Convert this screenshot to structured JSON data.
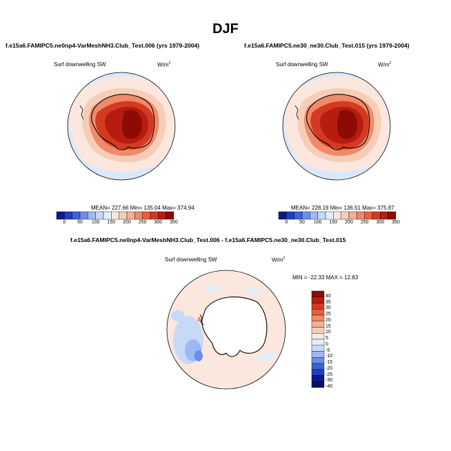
{
  "figure": {
    "title": "DJF"
  },
  "panel_left": {
    "case_title": "f.e15a6.FAMIPC5.ne0np4-VarMeshNH3.Club_Test.006 (yrs 1979-2004)",
    "variable": "Surf downwelling SW",
    "units_base": "W/m",
    "units_exp": "2",
    "stats": "MEAN= 227.66  Min= 135.04  Max= 374.94"
  },
  "panel_right": {
    "case_title": "f.e15a6.FAMIPC5.ne30_ne30.Club_Test.015 (yrs 1979-2004)",
    "variable": "Surf downwelling SW",
    "units_base": "W/m",
    "units_exp": "2",
    "stats": "MEAN= 228.19  Min= 136.51  Max= 375.87"
  },
  "panel_diff": {
    "case_title": "f.e15a6.FAMIPC5.ne0np4-VarMeshNH3.Club_Test.006 - f.e15a6.FAMIPC5.ne30_ne30.Club_Test.015",
    "variable": "Surf downwelling SW",
    "units_base": "W/m",
    "units_exp": "2",
    "stats": "MIN = -22.33 MAX =  12.83"
  },
  "colorbar_abs": {
    "labels": [
      "0",
      "50",
      "100",
      "150",
      "200",
      "250",
      "300",
      "350"
    ],
    "colors": [
      "#0a1a8c",
      "#1f3fbf",
      "#3c63d6",
      "#6b8ee8",
      "#9db8f2",
      "#c7d9f7",
      "#e3eefb",
      "#fbe7dd",
      "#f8cdb8",
      "#f5b094",
      "#f08a6a",
      "#e6603f",
      "#d43a22",
      "#b51d10",
      "#8e0b05"
    ]
  },
  "colorbar_diff": {
    "labels": [
      "40",
      "35",
      "30",
      "25",
      "20",
      "15",
      "10",
      "5",
      "0",
      "-5",
      "-10",
      "-15",
      "-20",
      "-25",
      "-30",
      "-40"
    ],
    "colors": [
      "#8e0b05",
      "#b51d10",
      "#d43a22",
      "#e6603f",
      "#f08a6a",
      "#f5b094",
      "#f8cdb8",
      "#fbe7dd",
      "#e3eefb",
      "#c7d9f7",
      "#9db8f2",
      "#6b8ee8",
      "#3c63d6",
      "#1f3fbf",
      "#0a1a8c",
      "#061066"
    ]
  }
}
